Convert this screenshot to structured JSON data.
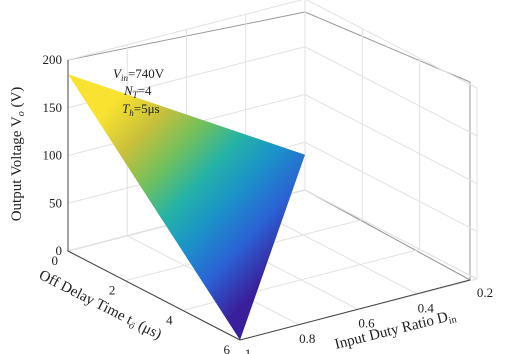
{
  "chart_data": {
    "type": "surface3d",
    "x_axis": {
      "ticks": [
        {
          "value": 0.2,
          "label": "0.2"
        },
        {
          "value": 0.4,
          "label": "0.4"
        },
        {
          "value": 0.6,
          "label": "0.6"
        },
        {
          "value": 0.8,
          "label": "0.8"
        },
        {
          "value": 1.0,
          "label": "1"
        }
      ],
      "range": [
        0.2,
        1.0
      ],
      "label_main": "Input Duty Ratio D",
      "label_sub": "in"
    },
    "y_axis": {
      "ticks": [
        {
          "value": 0,
          "label": "0"
        },
        {
          "value": 2,
          "label": "2"
        },
        {
          "value": 4,
          "label": "4"
        },
        {
          "value": 6,
          "label": "6"
        }
      ],
      "range": [
        0,
        6
      ],
      "label_main": "Off Delay Time t",
      "label_sub": "ö",
      "label_unit": " (μs)"
    },
    "z_axis": {
      "ticks": [
        {
          "value": 0,
          "label": "0"
        },
        {
          "value": 50,
          "label": "50"
        },
        {
          "value": 100,
          "label": "100"
        },
        {
          "value": 150,
          "label": "150"
        },
        {
          "value": 200,
          "label": "200"
        }
      ],
      "range": [
        0,
        200
      ],
      "label_main": "Output Voltage V",
      "label_sub": "o",
      "label_unit": " (V)"
    },
    "surface_vertices": [
      {
        "duty_ratio": 1.0,
        "off_delay_us": 0,
        "voltage": 185
      },
      {
        "duty_ratio": 0.2,
        "off_delay_us": 0,
        "voltage": 37
      },
      {
        "duty_ratio": 1.0,
        "off_delay_us": 6,
        "voltage": 0
      }
    ],
    "colormap": "parula",
    "grid": true,
    "annotations": [
      {
        "main": "V",
        "sub": "in",
        "rest": "=740V"
      },
      {
        "main": "N",
        "sub": "T",
        "rest": "=4"
      },
      {
        "main": "T",
        "sub": "h",
        "rest": "=5μs"
      }
    ]
  }
}
